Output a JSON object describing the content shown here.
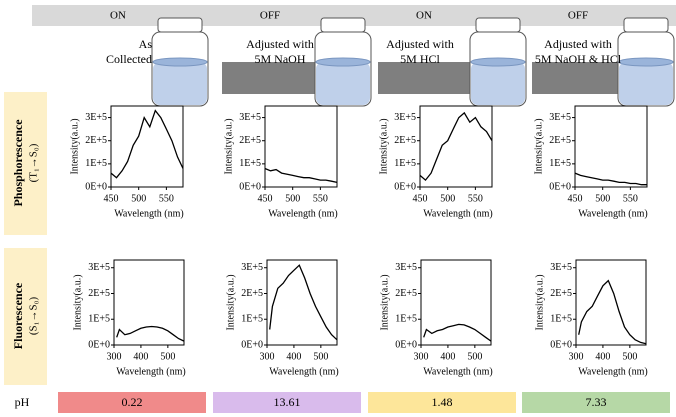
{
  "header": [
    "ON",
    "OFF",
    "ON",
    "OFF"
  ],
  "steps": [
    [
      "As",
      "Collected"
    ],
    [
      "Adjusted with",
      "5M NaOH"
    ],
    [
      "Adjusted with",
      "5M HCl"
    ],
    [
      "Adjusted with",
      "5M NaOH & HCl"
    ]
  ],
  "row_labels": [
    {
      "title": "Phosphorescence",
      "subtitle": "(T₁→S₀)"
    },
    {
      "title": "Fluorescence",
      "subtitle": "(S₁→S₀)"
    }
  ],
  "ph": {
    "label": "pH",
    "values": [
      "0.22",
      "13.61",
      "1.48",
      "7.33"
    ]
  },
  "chart_data": [
    {
      "type": "line",
      "xlabel": "Wavelength (nm)",
      "ylabel": "Intensity(a.u.)",
      "color": "#000000",
      "x": [
        450,
        460,
        470,
        480,
        490,
        500,
        510,
        520,
        530,
        540,
        550,
        560,
        570,
        580
      ],
      "values": [
        60000,
        40000,
        70000,
        110000,
        180000,
        220000,
        300000,
        260000,
        330000,
        300000,
        250000,
        200000,
        130000,
        80000
      ],
      "xlim": [
        450,
        580
      ],
      "xticks": [
        450,
        500,
        550
      ],
      "ylim": [
        0,
        350000
      ],
      "yticks": [
        {
          "value": 0,
          "label": "0E+0"
        },
        {
          "value": 100000,
          "label": "1E+5"
        },
        {
          "value": 200000,
          "label": "2E+5"
        },
        {
          "value": 300000,
          "label": "3E+5"
        }
      ]
    },
    {
      "type": "line",
      "xlabel": "Wavelength (nm)",
      "ylabel": "Intensity(a.u.)",
      "color": "#000000",
      "x": [
        450,
        460,
        470,
        480,
        490,
        500,
        510,
        520,
        530,
        540,
        550,
        560,
        570,
        580
      ],
      "values": [
        80000,
        70000,
        75000,
        60000,
        55000,
        50000,
        45000,
        40000,
        40000,
        35000,
        30000,
        30000,
        25000,
        20000
      ],
      "xlim": [
        450,
        580
      ],
      "xticks": [
        450,
        500,
        550
      ],
      "ylim": [
        0,
        350000
      ],
      "yticks": [
        {
          "value": 0,
          "label": "0E+0"
        },
        {
          "value": 100000,
          "label": "1E+5"
        },
        {
          "value": 200000,
          "label": "2E+5"
        },
        {
          "value": 300000,
          "label": "3E+5"
        }
      ]
    },
    {
      "type": "line",
      "xlabel": "Wavelength (nm)",
      "ylabel": "Intensity(a.u.)",
      "color": "#000000",
      "x": [
        450,
        460,
        470,
        480,
        490,
        500,
        510,
        520,
        530,
        540,
        550,
        560,
        570,
        580
      ],
      "values": [
        50000,
        30000,
        60000,
        120000,
        180000,
        200000,
        250000,
        300000,
        320000,
        280000,
        300000,
        260000,
        240000,
        200000
      ],
      "xlim": [
        450,
        580
      ],
      "xticks": [
        450,
        500,
        550
      ],
      "ylim": [
        0,
        350000
      ],
      "yticks": [
        {
          "value": 0,
          "label": "0E+0"
        },
        {
          "value": 100000,
          "label": "1E+5"
        },
        {
          "value": 200000,
          "label": "2E+5"
        },
        {
          "value": 300000,
          "label": "3E+5"
        }
      ]
    },
    {
      "type": "line",
      "xlabel": "Wavelength (nm)",
      "ylabel": "Intensity(a.u.)",
      "color": "#000000",
      "x": [
        450,
        460,
        470,
        480,
        490,
        500,
        510,
        520,
        530,
        540,
        550,
        560,
        570,
        580
      ],
      "values": [
        60000,
        50000,
        45000,
        40000,
        35000,
        30000,
        30000,
        25000,
        20000,
        20000,
        15000,
        15000,
        10000,
        10000
      ],
      "xlim": [
        450,
        580
      ],
      "xticks": [
        450,
        500,
        550
      ],
      "ylim": [
        0,
        350000
      ],
      "yticks": [
        {
          "value": 0,
          "label": "0E+0"
        },
        {
          "value": 100000,
          "label": "1E+5"
        },
        {
          "value": 200000,
          "label": "2E+5"
        },
        {
          "value": 300000,
          "label": "3E+5"
        }
      ]
    },
    {
      "type": "line",
      "xlabel": "Wavelength (nm)",
      "ylabel": "Intensity(a.u.)",
      "color": "#000000",
      "x": [
        310,
        320,
        340,
        360,
        380,
        400,
        420,
        440,
        460,
        480,
        500,
        520,
        540,
        560
      ],
      "values": [
        30000,
        60000,
        40000,
        45000,
        55000,
        65000,
        70000,
        72000,
        70000,
        65000,
        55000,
        40000,
        25000,
        15000
      ],
      "xlim": [
        300,
        560
      ],
      "xticks": [
        300,
        400,
        500
      ],
      "ylim": [
        0,
        330000
      ],
      "yticks": [
        {
          "value": 0,
          "label": "0E+0"
        },
        {
          "value": 100000,
          "label": "1E+5"
        },
        {
          "value": 200000,
          "label": "2E+5"
        },
        {
          "value": 300000,
          "label": "3E+5"
        }
      ]
    },
    {
      "type": "line",
      "xlabel": "Wavelength (nm)",
      "ylabel": "Intensity(a.u.)",
      "color": "#000000",
      "x": [
        310,
        320,
        340,
        360,
        380,
        400,
        420,
        440,
        460,
        480,
        500,
        520,
        540,
        560
      ],
      "values": [
        60000,
        150000,
        220000,
        240000,
        270000,
        290000,
        310000,
        260000,
        200000,
        150000,
        110000,
        70000,
        40000,
        20000
      ],
      "xlim": [
        300,
        560
      ],
      "xticks": [
        300,
        400,
        500
      ],
      "ylim": [
        0,
        330000
      ],
      "yticks": [
        {
          "value": 0,
          "label": "0E+0"
        },
        {
          "value": 100000,
          "label": "1E+5"
        },
        {
          "value": 200000,
          "label": "2E+5"
        },
        {
          "value": 300000,
          "label": "3E+5"
        }
      ]
    },
    {
      "type": "line",
      "xlabel": "Wavelength (nm)",
      "ylabel": "Intensity(a.u.)",
      "color": "#000000",
      "x": [
        310,
        320,
        340,
        360,
        380,
        400,
        420,
        440,
        460,
        480,
        500,
        520,
        540,
        560
      ],
      "values": [
        30000,
        60000,
        45000,
        55000,
        60000,
        70000,
        75000,
        80000,
        78000,
        70000,
        60000,
        45000,
        30000,
        15000
      ],
      "xlim": [
        300,
        560
      ],
      "xticks": [
        300,
        400,
        500
      ],
      "ylim": [
        0,
        330000
      ],
      "yticks": [
        {
          "value": 0,
          "label": "0E+0"
        },
        {
          "value": 100000,
          "label": "1E+5"
        },
        {
          "value": 200000,
          "label": "2E+5"
        },
        {
          "value": 300000,
          "label": "3E+5"
        }
      ]
    },
    {
      "type": "line",
      "xlabel": "Wavelength (nm)",
      "ylabel": "Intensity(a.u.)",
      "color": "#000000",
      "x": [
        310,
        320,
        340,
        360,
        380,
        400,
        420,
        440,
        460,
        480,
        500,
        520,
        540,
        560
      ],
      "values": [
        40000,
        90000,
        130000,
        150000,
        190000,
        230000,
        250000,
        200000,
        130000,
        70000,
        40000,
        20000,
        10000,
        5000
      ],
      "xlim": [
        300,
        560
      ],
      "xticks": [
        300,
        400,
        500
      ],
      "ylim": [
        0,
        330000
      ],
      "yticks": [
        {
          "value": 0,
          "label": "0E+0"
        },
        {
          "value": 100000,
          "label": "1E+5"
        },
        {
          "value": 200000,
          "label": "2E+5"
        },
        {
          "value": 300000,
          "label": "3E+5"
        }
      ]
    }
  ]
}
